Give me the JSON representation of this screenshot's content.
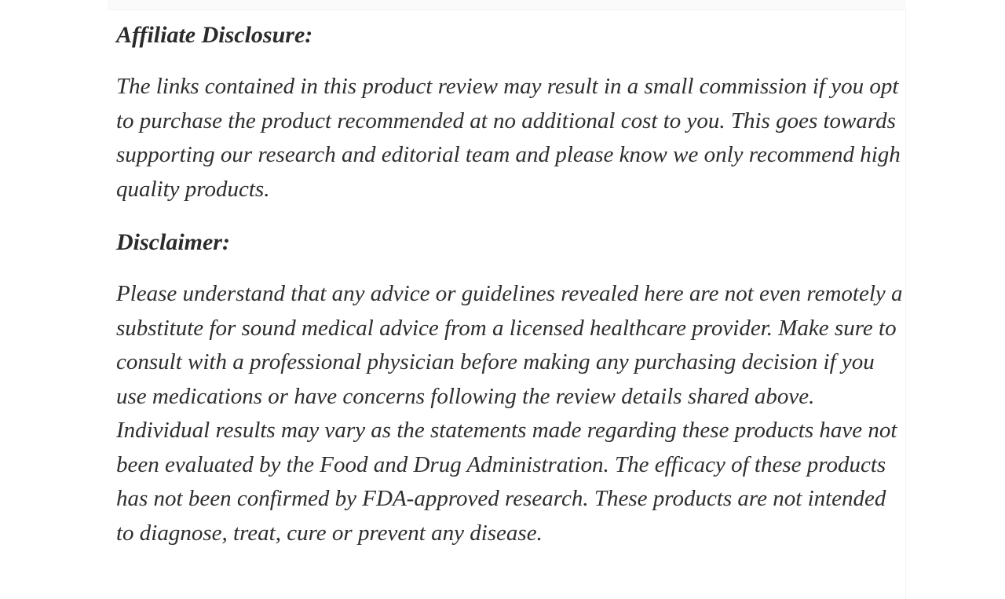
{
  "page": {
    "background_color": "#ffffff",
    "divider_color": "#f3f3f3",
    "text_color": "#2e2e2e"
  },
  "article": {
    "sections": [
      {
        "heading": "Affiliate Disclosure:",
        "body": "The links contained in this product review may result in a small commission if you opt to purchase the product recommended at no additional cost to you. This goes towards supporting our research and editorial team and please know we only recommend high quality products."
      },
      {
        "heading": "Disclaimer:",
        "body": "Please understand that any advice or guidelines revealed here are not even remotely a substitute for sound medical advice from a licensed healthcare provider. Make sure to consult with a professional physician before making any purchasing decision if you use medications or have concerns following the review details shared above. Individual results may vary as the statements made regarding these products have not been evaluated by the Food and Drug Administration. The efficacy of these products has not been confirmed by FDA-approved research. These products are not intended to diagnose, treat, cure or prevent any disease."
      }
    ]
  }
}
